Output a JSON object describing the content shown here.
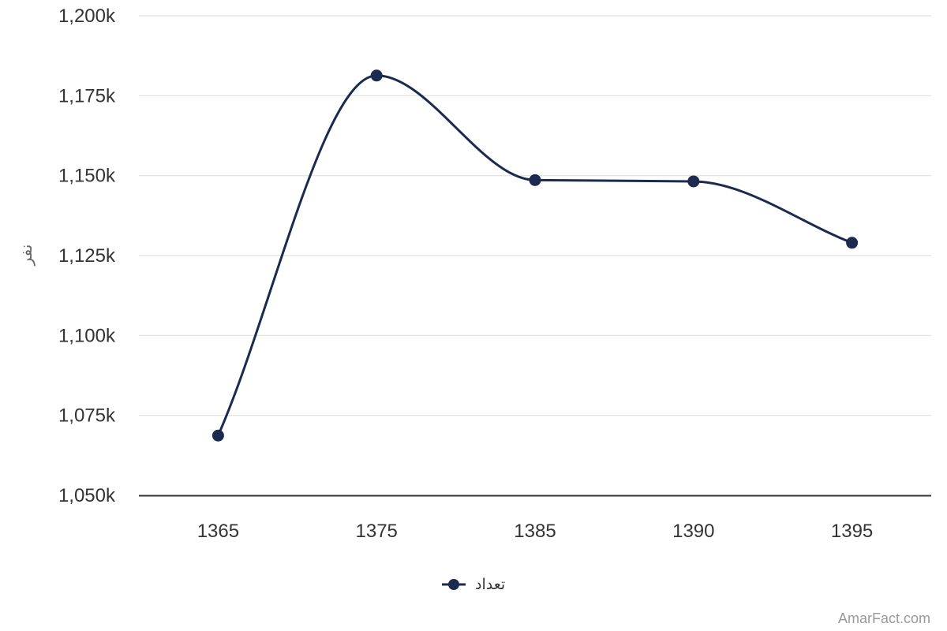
{
  "chart_data": {
    "type": "line",
    "x": [
      "1365",
      "1375",
      "1385",
      "1390",
      "1395"
    ],
    "series": [
      {
        "name": "تعداد",
        "values": [
          1068700,
          1181300,
          1148600,
          1148200,
          1129000
        ],
        "color": "#1b2a4e"
      }
    ],
    "ylabel": "نفر",
    "xlabel": "",
    "title": "",
    "ylim": [
      1050000,
      1200000
    ],
    "yticks": [
      1050000,
      1075000,
      1100000,
      1125000,
      1150000,
      1175000,
      1200000
    ],
    "ytick_labels": [
      "1,050k",
      "1,075k",
      "1,100k",
      "1,125k",
      "1,150k",
      "1,175k",
      "1,200k"
    ],
    "grid": true,
    "smooth": true,
    "legend_position": "bottom-center"
  },
  "credit": "AmarFact.com",
  "colors": {
    "grid": "#e6e6e6",
    "axis": "#333333",
    "series": "#1b2a4e"
  }
}
